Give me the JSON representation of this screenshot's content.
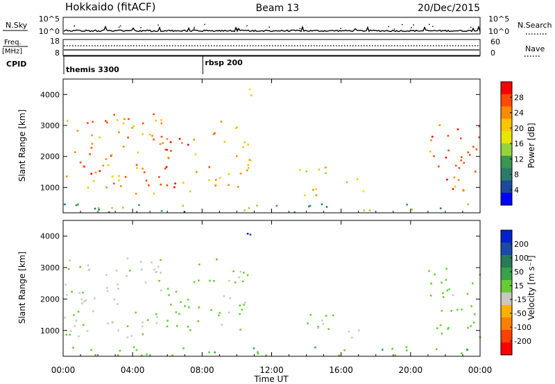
{
  "header": {
    "title_left": "Hokkaido (fitACF)",
    "title_center": "Beam 13",
    "title_right": "20/Dec/2015"
  },
  "top_panels": {
    "nsky_label": "N.Sky",
    "nsky_ticks": [
      "10^5",
      "10^0"
    ],
    "nsearch_label": "N.Search",
    "nsearch_ticks": [
      "10^5",
      "10^0"
    ],
    "freq_label_1": "Freq.",
    "freq_label_2": "[MHz]",
    "freq_ticks": [
      "18",
      "8"
    ],
    "nave_label": "Nave",
    "nave_ticks": [
      "60",
      "0"
    ],
    "cpid_label": "CPID"
  },
  "cpid": {
    "segments": [
      {
        "start_hour": 0.0,
        "label": "themis 3300"
      },
      {
        "start_hour": 8.0,
        "label": "rbsp 200"
      }
    ]
  },
  "power_colorbar": {
    "label": "Power [dB]",
    "ticks": [
      "28",
      "24",
      "20",
      "16",
      "12",
      "8",
      "4"
    ],
    "colors": [
      "#ff0000",
      "#ff4a00",
      "#ff8a00",
      "#ffc400",
      "#e6e600",
      "#96d23c",
      "#3c9650",
      "#2a7a6a",
      "#1a4a9a",
      "#0000ff"
    ]
  },
  "velocity_colorbar": {
    "label": "Velocity [m s⁻¹]",
    "ticks": [
      "200",
      "100",
      "50",
      "15",
      "-15",
      "-50",
      "-100",
      "-200"
    ],
    "colors": [
      "#0022cc",
      "#1d4aa6",
      "#2a7a5a",
      "#3aa04a",
      "#66cc33",
      "#c8c8c0",
      "#ffb000",
      "#ff7f00",
      "#ff4000",
      "#ff0000"
    ]
  },
  "x_axis": {
    "label": "Time UT",
    "ticks": [
      "00:00",
      "04:00",
      "08:00",
      "12:00",
      "16:00",
      "20:00",
      "00:00"
    ]
  },
  "chart_data": [
    {
      "type": "heatmap",
      "title": "Power",
      "xlabel": "Time UT",
      "ylabel": "Slant Range [km]",
      "xlim_hours": [
        0,
        24
      ],
      "ylim": [
        180,
        4500
      ],
      "yticks": [
        1000,
        2000,
        3000,
        4000
      ],
      "colorbar_label": "Power [dB]",
      "colorbar_range": [
        0,
        30
      ],
      "approximate_echo_regions": [
        {
          "t_start": 0.0,
          "t_end": 5.8,
          "r_min": 800,
          "r_max": 3400,
          "typical_db": 24
        },
        {
          "t_start": 5.8,
          "t_end": 7.8,
          "r_min": 900,
          "r_max": 3200,
          "typical_db": 26
        },
        {
          "t_start": 8.3,
          "t_end": 10.8,
          "r_min": 1000,
          "r_max": 3300,
          "typical_db": 22
        },
        {
          "t_start": 10.5,
          "t_end": 11.2,
          "r_min": 3800,
          "r_max": 4400,
          "typical_db": 16
        },
        {
          "t_start": 13.5,
          "t_end": 15.5,
          "r_min": 700,
          "r_max": 1700,
          "typical_db": 18
        },
        {
          "t_start": 16.2,
          "t_end": 17.3,
          "r_min": 800,
          "r_max": 1500,
          "typical_db": 16
        },
        {
          "t_start": 21.0,
          "t_end": 24.0,
          "r_min": 800,
          "r_max": 3100,
          "typical_db": 26
        },
        {
          "t_start": 0.0,
          "t_end": 24.0,
          "r_min": 200,
          "r_max": 500,
          "typical_db": 10
        }
      ]
    },
    {
      "type": "heatmap",
      "title": "Velocity",
      "xlabel": "Time UT",
      "ylabel": "Slant Range [km]",
      "xlim_hours": [
        0,
        24
      ],
      "ylim": [
        180,
        4500
      ],
      "yticks": [
        1000,
        2000,
        3000,
        4000
      ],
      "colorbar_label": "Velocity [m s⁻¹]",
      "colorbar_range": [
        -250,
        250
      ],
      "approximate_echo_regions": [
        {
          "t_start": 0.0,
          "t_end": 5.8,
          "r_min": 800,
          "r_max": 3400,
          "typical_velocity": -10
        },
        {
          "t_start": 5.8,
          "t_end": 7.8,
          "r_min": 900,
          "r_max": 3200,
          "typical_velocity": 30
        },
        {
          "t_start": 8.3,
          "t_end": 10.8,
          "r_min": 1000,
          "r_max": 3300,
          "typical_velocity": 0
        },
        {
          "t_start": 10.5,
          "t_end": 11.2,
          "r_min": 3800,
          "r_max": 4400,
          "typical_velocity": 220
        },
        {
          "t_start": 13.5,
          "t_end": 15.5,
          "r_min": 700,
          "r_max": 1700,
          "typical_velocity": -5
        },
        {
          "t_start": 16.2,
          "t_end": 17.3,
          "r_min": 800,
          "r_max": 1500,
          "typical_velocity": -5
        },
        {
          "t_start": 21.0,
          "t_end": 24.0,
          "r_min": 800,
          "r_max": 3100,
          "typical_velocity": 20
        },
        {
          "t_start": 0.0,
          "t_end": 24.0,
          "r_min": 200,
          "r_max": 500,
          "typical_velocity": 40
        }
      ]
    }
  ]
}
